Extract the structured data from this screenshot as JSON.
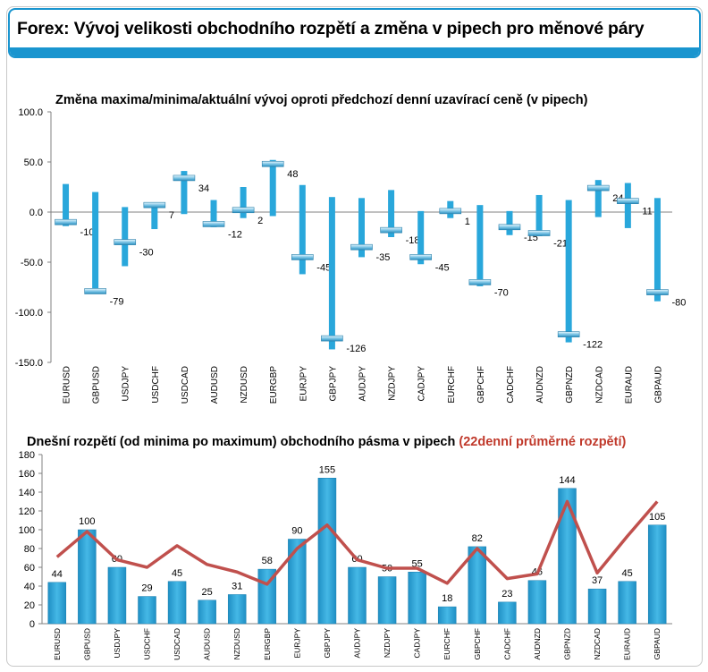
{
  "page": {
    "title": "Forex: Vývoj velikosti obchodního rozpětí a změna v pipech pro měnové páry",
    "colors": {
      "accent": "#1a95cf",
      "bar": "#29a7db",
      "line": "#c0504d"
    }
  },
  "chart_data": [
    {
      "type": "bar",
      "subtype": "high-low-close",
      "title": "Změna maxima/minima/aktuální vývoj oproti předchozí denní uzavírací ceně (v pipech)",
      "categories": [
        "EURUSD",
        "GBPUSD",
        "USDJPY",
        "USDCHF",
        "USDCAD",
        "AUDUSD",
        "NZDUSD",
        "EURGBP",
        "EURJPY",
        "GBPJPY",
        "AUDJPY",
        "NZDJPY",
        "CADJPY",
        "EURCHF",
        "GBPCHF",
        "CADCHF",
        "AUDNZD",
        "GBPNZD",
        "NZDCAD",
        "EURAUD",
        "GBPAUD"
      ],
      "series": [
        {
          "values": [
            28,
            20,
            5,
            9,
            41,
            12,
            25,
            52,
            27,
            15,
            14,
            22,
            1,
            11,
            7,
            1,
            17,
            12,
            32,
            29,
            14
          ]
        },
        {
          "values": [
            -14,
            -76,
            -54,
            -17,
            -2,
            -15,
            -6,
            -4,
            -62,
            -137,
            -45,
            -25,
            -52,
            -6,
            -74,
            -23,
            -24,
            -130,
            -5,
            -16,
            -89
          ]
        },
        {
          "values": [
            -10,
            -79,
            -30,
            7,
            34,
            -12,
            2,
            48,
            -45,
            -126,
            -35,
            -18,
            -45,
            1,
            -70,
            -15,
            -21,
            -122,
            24,
            11,
            -80
          ]
        }
      ],
      "ylim": [
        -150,
        100
      ],
      "yticks": [
        "100.0",
        "50.0",
        "0.0",
        "-50.0",
        "-100.0",
        "-150.0"
      ],
      "ytick_values": [
        100,
        50,
        0,
        -50,
        -100,
        -150
      ]
    },
    {
      "type": "bar",
      "title": "Dnešní rozpětí (od minima po maximum) obchodního pásma v pipech",
      "title_highlight": "(22denní průměrné rozpětí)",
      "categories": [
        "EURUSD",
        "GBPUSD",
        "USDJPY",
        "USDCHF",
        "USDCAD",
        "AUDUSD",
        "NZDUSD",
        "EURGBP",
        "EURJPY",
        "GBPJPY",
        "AUDJPY",
        "NZDJPY",
        "CADJPY",
        "EURCHF",
        "GBPCHF",
        "CADCHF",
        "AUDNZD",
        "GBPNZD",
        "NZDCAD",
        "EURAUD",
        "GBPAUD"
      ],
      "series": [
        {
          "values": [
            44,
            100,
            60,
            29,
            45,
            25,
            31,
            58,
            90,
            155,
            60,
            50,
            55,
            18,
            82,
            23,
            46,
            144,
            37,
            45,
            105
          ]
        },
        {
          "values": [
            71,
            98,
            68,
            60,
            83,
            63,
            55,
            42,
            80,
            105,
            68,
            59,
            59,
            43,
            80,
            48,
            53,
            130,
            54,
            93,
            130
          ]
        }
      ],
      "ylim": [
        0,
        180
      ],
      "yticks": [
        "0",
        "20",
        "40",
        "60",
        "80",
        "100",
        "120",
        "140",
        "160",
        "180"
      ],
      "ytick_values": [
        0,
        20,
        40,
        60,
        80,
        100,
        120,
        140,
        160,
        180
      ]
    }
  ]
}
